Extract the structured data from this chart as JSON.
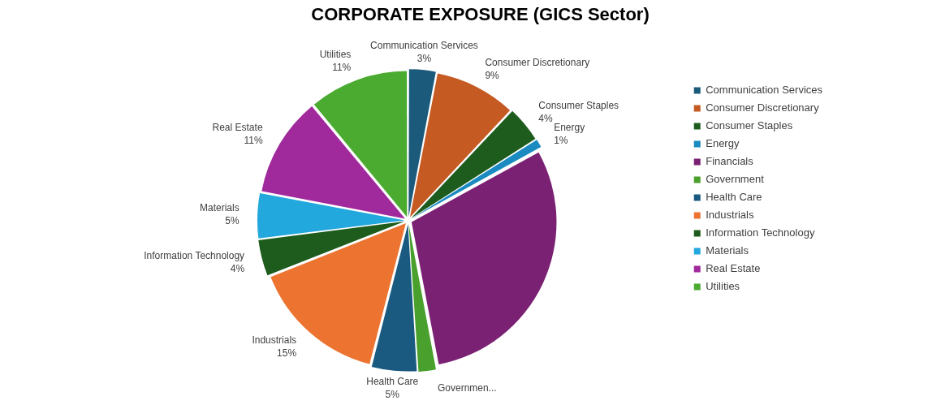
{
  "chart_data": {
    "type": "pie",
    "title": "CORPORATE EXPOSURE (GICS Sector)",
    "categories": [
      "Communication Services",
      "Consumer Discretionary",
      "Consumer Staples",
      "Energy",
      "Financials",
      "Government",
      "Health Care",
      "Industrials",
      "Information Technology",
      "Materials",
      "Real Estate",
      "Utilities"
    ],
    "values": [
      3,
      9,
      4,
      1,
      30,
      2,
      5,
      15,
      4,
      5,
      11,
      11
    ],
    "colors": [
      "#1b5a7a",
      "#c55a22",
      "#1e5c1e",
      "#1a8ac0",
      "#7b2173",
      "#4aa02c",
      "#1a5a80",
      "#ec7430",
      "#1d5c1d",
      "#22a8dc",
      "#a02a9c",
      "#4aab30"
    ],
    "value_labels": [
      "3%",
      "9%",
      "4%",
      "1%",
      null,
      null,
      "5%",
      "15%",
      "4%",
      "5%",
      "11%",
      "11%"
    ],
    "annotations": [
      {
        "text": "Governmen...",
        "x": "Government"
      }
    ],
    "legend": "right"
  }
}
